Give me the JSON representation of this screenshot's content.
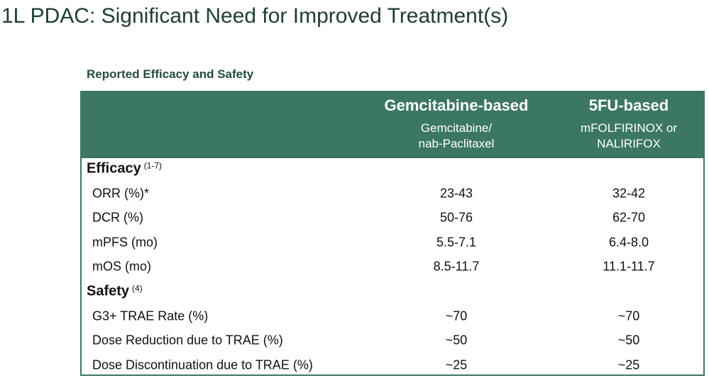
{
  "title": "1L PDAC: Significant Need for Improved Treatment(s)",
  "subtitle": "Reported Efficacy and Safety",
  "table": {
    "columns": [
      {
        "heading": "Gemcitabine-based",
        "subheading": [
          "Gemcitabine/",
          "nab-Paclitaxel"
        ]
      },
      {
        "heading": "5FU-based",
        "subheading": [
          "mFOLFIRINOX or",
          "NALIRIFOX"
        ]
      }
    ],
    "sections": [
      {
        "label": "Efficacy",
        "reference": "(1-7)",
        "rows": [
          [
            "ORR (%)*",
            "23-43",
            "32-42"
          ],
          [
            "DCR (%)",
            "50-76",
            "62-70"
          ],
          [
            "mPFS (mo)",
            "5.5-7.1",
            "6.4-8.0"
          ],
          [
            "mOS (mo)",
            "8.5-11.7",
            "11.1-11.7"
          ]
        ]
      },
      {
        "label": "Safety",
        "reference": "(4)",
        "rows": [
          [
            "G3+ TRAE Rate (%)",
            "~70",
            "~70"
          ],
          [
            "Dose Reduction due to TRAE (%)",
            "~50",
            "~50"
          ],
          [
            "Dose Discontinuation due to TRAE (%)",
            "~25",
            "~25"
          ]
        ]
      }
    ]
  }
}
